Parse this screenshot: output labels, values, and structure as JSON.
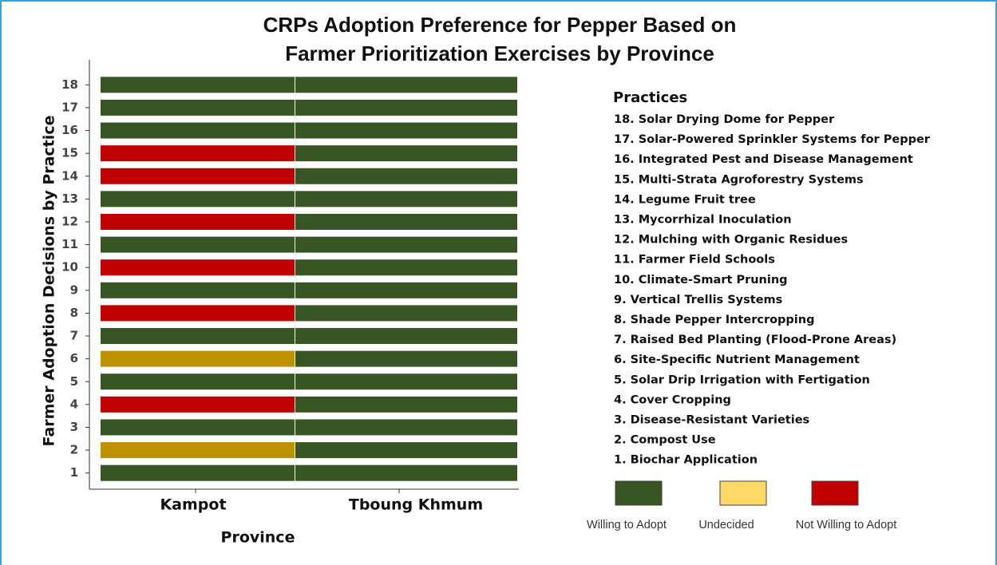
{
  "chart_data": {
    "type": "heatmap",
    "title_lines": [
      "CRPs Adoption Preference for Pepper Based on",
      "Farmer Prioritization Exercises by Province"
    ],
    "x_label": "Province",
    "y_label": "Farmer Adoption Decisions by Practice",
    "categories": [
      "Kampot",
      "Tboung Khmum"
    ],
    "y_categories": [
      1,
      2,
      3,
      4,
      5,
      6,
      7,
      8,
      9,
      10,
      11,
      12,
      13,
      14,
      15,
      16,
      17,
      18
    ],
    "cells": [
      [
        "Willing to Adopt",
        "Undecided",
        "Willing to Adopt",
        "Not Willing to Adopt",
        "Willing to Adopt",
        "Undecided",
        "Willing to Adopt",
        "Not Willing to Adopt",
        "Willing to Adopt",
        "Not Willing to Adopt",
        "Willing to Adopt",
        "Not Willing to Adopt",
        "Willing to Adopt",
        "Not Willing to Adopt",
        "Not Willing to Adopt",
        "Willing to Adopt",
        "Willing to Adopt",
        "Willing to Adopt"
      ],
      [
        "Willing to Adopt",
        "Willing to Adopt",
        "Willing to Adopt",
        "Willing to Adopt",
        "Willing to Adopt",
        "Willing to Adopt",
        "Willing to Adopt",
        "Willing to Adopt",
        "Willing to Adopt",
        "Willing to Adopt",
        "Willing to Adopt",
        "Willing to Adopt",
        "Willing to Adopt",
        "Willing to Adopt",
        "Willing to Adopt",
        "Willing to Adopt",
        "Willing to Adopt",
        "Willing to Adopt"
      ]
    ],
    "levels": [
      {
        "name": "Willing to Adopt",
        "color": "#375623",
        "legend_color": "#375623"
      },
      {
        "name": "Undecided",
        "color": "#bf9000",
        "legend_color": "#ffd966"
      },
      {
        "name": "Not Willing to Adopt",
        "color": "#c00000",
        "legend_color": "#c00000"
      }
    ],
    "practices_title": "Practices",
    "practices": [
      "18. Solar Drying Dome for Pepper",
      "17. Solar-Powered Sprinkler Systems for Pepper",
      "16. Integrated Pest and Disease Management",
      "15. Multi-Strata Agroforestry Systems",
      "14. Legume Fruit tree",
      "13. Mycorrhizal Inoculation",
      "12. Mulching with Organic Residues",
      "11. Farmer Field Schools",
      "10. Climate-Smart Pruning",
      "9. Vertical Trellis Systems",
      "8. Shade Pepper Intercropping",
      "7. Raised Bed Planting (Flood-Prone Areas)",
      "6. Site-Specific Nutrient Management",
      "5. Solar Drip Irrigation with Fertigation",
      "4. Cover Cropping",
      "3. Disease-Resistant Varieties",
      "2. Compost Use",
      "1. Biochar Application"
    ]
  }
}
